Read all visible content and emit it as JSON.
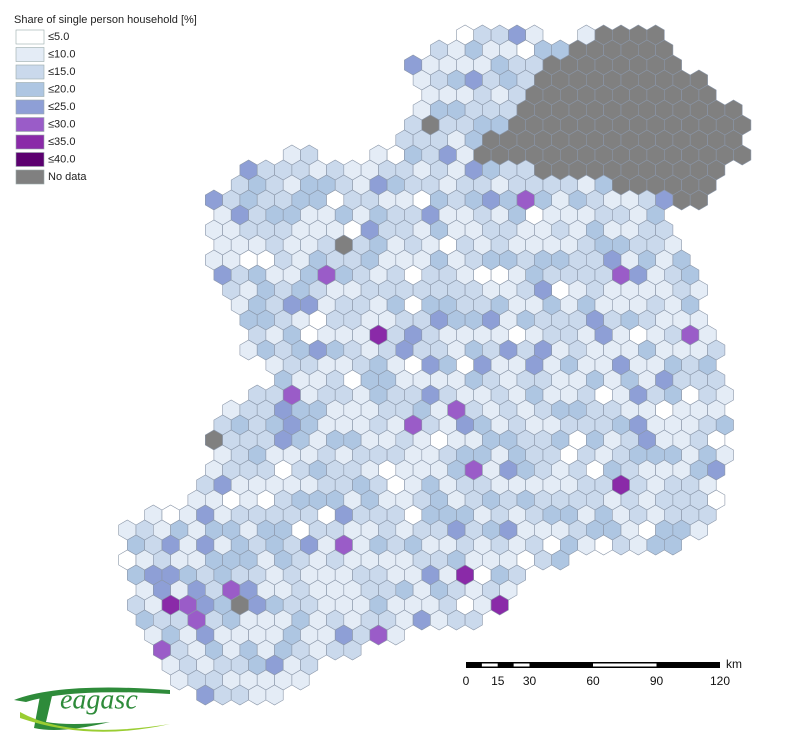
{
  "legend": {
    "title": "Share of single person household [%]",
    "items": [
      {
        "label": "≤5.0",
        "color": "#ffffff"
      },
      {
        "label": "≤10.0",
        "color": "#e4ecf6"
      },
      {
        "label": "≤15.0",
        "color": "#cad9ec"
      },
      {
        "label": "≤20.0",
        "color": "#aec6e2"
      },
      {
        "label": "≤25.0",
        "color": "#8e9fd6"
      },
      {
        "label": "≤30.0",
        "color": "#9a5cc8"
      },
      {
        "label": "≤35.0",
        "color": "#8a2aa8"
      },
      {
        "label": "≤40.0",
        "color": "#5c0070"
      },
      {
        "label": "No data",
        "color": "#808080"
      }
    ]
  },
  "scale_bar": {
    "ticks": [
      0,
      15,
      30,
      60,
      90,
      120
    ],
    "unit": "km"
  },
  "logo": {
    "text": "eagasc"
  }
}
